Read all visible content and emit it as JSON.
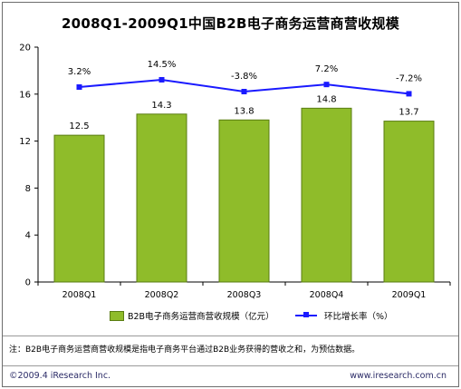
{
  "title": "2008Q1-2009Q1中国B2B电子商务运营商营收规模",
  "chart_data": {
    "type": "bar",
    "categories": [
      "2008Q1",
      "2008Q2",
      "2008Q3",
      "2008Q4",
      "2009Q1"
    ],
    "series": [
      {
        "name": "B2B电子商务运营商营收规模（亿元）",
        "type": "bar",
        "values": [
          12.5,
          14.3,
          13.8,
          14.8,
          13.7
        ],
        "value_labels": [
          "12.5",
          "14.3",
          "13.8",
          "14.8",
          "13.7"
        ],
        "color": "#8fbc2a"
      },
      {
        "name": "环比增长率（%）",
        "type": "line",
        "values": [
          3.2,
          14.5,
          -3.8,
          7.2,
          -7.2
        ],
        "value_labels": [
          "3.2%",
          "14.5%",
          "-3.8%",
          "7.2%",
          "-7.2%"
        ],
        "color": "#1a1aff"
      }
    ],
    "ylim": [
      0,
      20
    ],
    "yticks": [
      "0",
      "4",
      "8",
      "12",
      "16",
      "20"
    ],
    "grid": false,
    "legend_position": "bottom"
  },
  "legend": {
    "bar_label": "B2B电子商务运营商营收规模（亿元）",
    "line_label": "环比增长率（%）"
  },
  "note": "注：B2B电子商务运营商营收规模是指电子商务平台通过B2B业务获得的营收之和，为预估数据。",
  "footer": {
    "copyright": "©2009.4 iResearch Inc.",
    "website": "www.iresearch.com.cn"
  }
}
